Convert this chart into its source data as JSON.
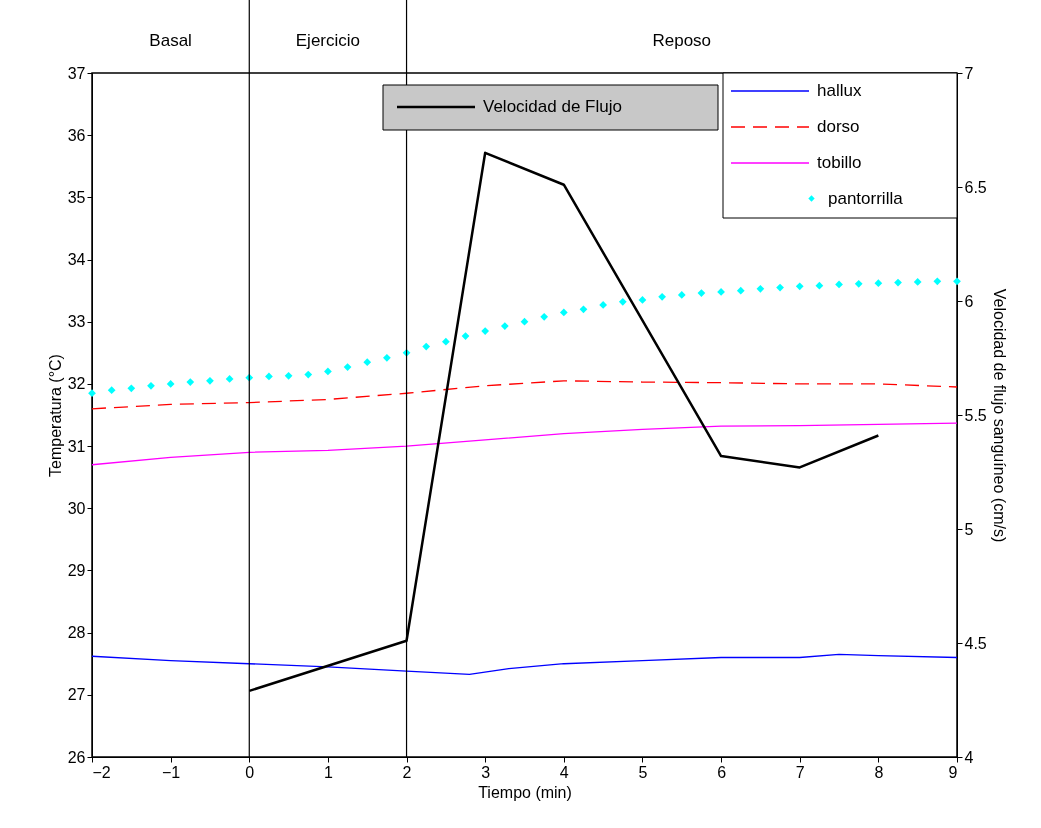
{
  "chart_data": {
    "type": "line",
    "xlabel": "Tiempo (min)",
    "ylabel": "Temperatura (°C)",
    "y2label": "Velocidad de flujo sanguíneo (cm/s)",
    "xlim": [
      -2,
      9
    ],
    "xticks": [
      -2,
      -1,
      0,
      1,
      2,
      3,
      4,
      5,
      6,
      7,
      8,
      9
    ],
    "ylim": [
      26,
      37
    ],
    "yticks": [
      26,
      27,
      28,
      29,
      30,
      31,
      32,
      33,
      34,
      35,
      36,
      37
    ],
    "y2lim": [
      4,
      7
    ],
    "y2ticks": [
      4,
      4.5,
      5,
      5.5,
      6,
      6.5,
      7
    ],
    "grid": false,
    "legend": "top right",
    "ref_lines": [
      {
        "axis": "x",
        "value": 0,
        "color": "#000000"
      },
      {
        "axis": "x",
        "value": 2,
        "color": "#000000"
      }
    ],
    "annotations": [
      "Basal",
      "Ejercicio",
      "Reposo"
    ],
    "series": [
      {
        "name": "Velocidad de Flujo",
        "axis": "y2",
        "color": "#000000",
        "line_style": "solid",
        "x": [
          0,
          2,
          3,
          4,
          6,
          7,
          8
        ],
        "values": [
          4.29,
          4.51,
          6.65,
          6.51,
          5.32,
          5.27,
          5.41
        ]
      },
      {
        "name": "hallux",
        "color": "#0000ff",
        "line_style": "solid",
        "x": [
          -2,
          -1,
          0,
          1,
          2,
          2.8,
          3.3,
          4,
          5,
          6,
          7,
          7.5,
          8,
          9
        ],
        "values": [
          27.62,
          27.55,
          27.5,
          27.45,
          27.38,
          27.33,
          27.42,
          27.5,
          27.55,
          27.6,
          27.6,
          27.65,
          27.63,
          27.6
        ]
      },
      {
        "name": "dorso",
        "color": "#ff0000",
        "line_style": "dashed",
        "x": [
          -2,
          -1,
          0,
          1,
          2,
          3,
          4,
          5,
          6,
          7,
          8,
          9
        ],
        "values": [
          31.6,
          31.67,
          31.7,
          31.75,
          31.85,
          31.97,
          32.05,
          32.03,
          32.02,
          32.0,
          32.0,
          31.95
        ]
      },
      {
        "name": "tobillo",
        "color": "#ff00ff",
        "line_style": "solid",
        "x": [
          -2,
          -1,
          0,
          1,
          2,
          3,
          4,
          5,
          6,
          7,
          8,
          9
        ],
        "values": [
          30.7,
          30.82,
          30.9,
          30.93,
          31.0,
          31.1,
          31.2,
          31.27,
          31.32,
          31.33,
          31.35,
          31.37
        ]
      },
      {
        "name": "pantorrilla",
        "type": "scatter",
        "marker": "diamond",
        "color": "#00ffff",
        "x": [
          -2,
          -1.75,
          -1.5,
          -1.25,
          -1,
          -0.75,
          -0.5,
          -0.25,
          0,
          0.25,
          0.5,
          0.75,
          1,
          1.25,
          1.5,
          1.75,
          2,
          2.25,
          2.5,
          2.75,
          3,
          3.25,
          3.5,
          3.75,
          4,
          4.25,
          4.5,
          4.75,
          5,
          5.25,
          5.5,
          5.75,
          6,
          6.25,
          6.5,
          6.75,
          7,
          7.25,
          7.5,
          7.75,
          8,
          8.25,
          8.5,
          8.75,
          9
        ],
        "values": [
          31.85,
          31.9,
          31.93,
          31.97,
          32.0,
          32.03,
          32.05,
          32.08,
          32.1,
          32.12,
          32.13,
          32.15,
          32.2,
          32.27,
          32.35,
          32.42,
          32.5,
          32.6,
          32.68,
          32.77,
          32.85,
          32.93,
          33.0,
          33.08,
          33.15,
          33.2,
          33.27,
          33.32,
          33.35,
          33.4,
          33.43,
          33.46,
          33.48,
          33.5,
          33.53,
          33.55,
          33.57,
          33.58,
          33.6,
          33.61,
          33.62,
          33.63,
          33.64,
          33.65,
          33.65
        ]
      }
    ]
  }
}
